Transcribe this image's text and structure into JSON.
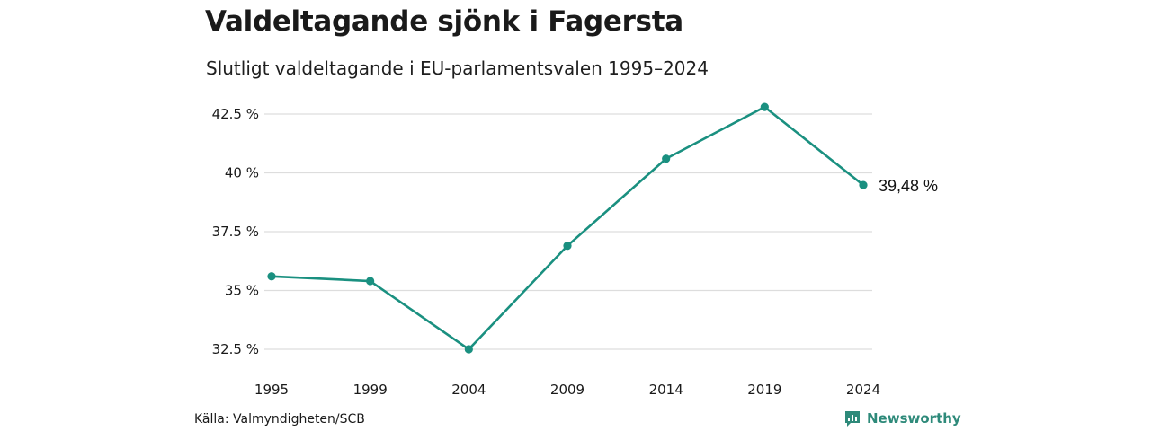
{
  "colors": {
    "line": "#1a9080",
    "grid": "#dddddd",
    "brand": "#2e8a7a"
  },
  "header": {
    "title": "Valdeltagande sjönk i Fagersta",
    "subtitle": "Slutligt valdeltagande i EU-parlamentsvalen 1995–2024"
  },
  "footer": {
    "source": "Källa: Valmyndigheten/SCB",
    "brand": "Newsworthy",
    "brand_icon": "newsworthy-logo-icon"
  },
  "chart_data": {
    "type": "line",
    "title": "Valdeltagande sjönk i Fagersta",
    "subtitle": "Slutligt valdeltagande i EU-parlamentsvalen 1995–2024",
    "xlabel": "",
    "ylabel": "",
    "x": [
      "1995",
      "1999",
      "2004",
      "2009",
      "2014",
      "2019",
      "2024"
    ],
    "series": [
      {
        "values": [
          35.6,
          35.4,
          32.5,
          36.9,
          40.6,
          42.8,
          39.48
        ]
      }
    ],
    "ylim": [
      32.5,
      42.5
    ],
    "y_ticks": [
      42.5,
      40,
      37.5,
      35,
      32.5
    ],
    "y_tick_labels": [
      "42.5 %",
      "40 %",
      "37.5 %",
      "35 %",
      "32.5 %"
    ],
    "end_label": "39,48 %",
    "grid": true,
    "legend": "none"
  }
}
